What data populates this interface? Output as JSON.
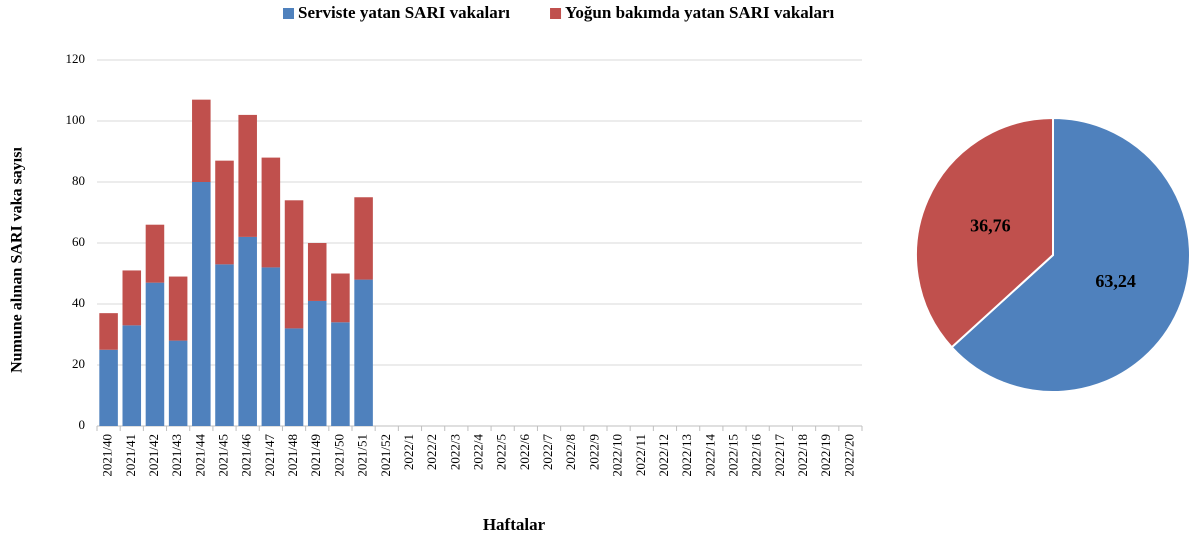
{
  "chart_data": [
    {
      "type": "bar",
      "stacked": true,
      "x_label": "Haftalar",
      "y_label": "Numune alınan SARI vaka sayısı",
      "categories": [
        "2021/40",
        "2021/41",
        "2021/42",
        "2021/43",
        "2021/44",
        "2021/45",
        "2021/46",
        "2021/47",
        "2021/48",
        "2021/49",
        "2021/50",
        "2021/51",
        "2021/52",
        "2022/1",
        "2022/2",
        "2022/3",
        "2022/4",
        "2022/5",
        "2022/6",
        "2022/7",
        "2022/8",
        "2022/9",
        "2022/10",
        "2022/11",
        "2022/12",
        "2022/13",
        "2022/14",
        "2022/15",
        "2022/16",
        "2022/17",
        "2022/18",
        "2022/19",
        "2022/20"
      ],
      "series": [
        {
          "name": "Serviste yatan SARI vakaları",
          "color": "#4f81bd",
          "values": [
            25,
            33,
            47,
            28,
            80,
            53,
            62,
            52,
            32,
            41,
            34,
            48,
            null,
            null,
            null,
            null,
            null,
            null,
            null,
            null,
            null,
            null,
            null,
            null,
            null,
            null,
            null,
            null,
            null,
            null,
            null,
            null,
            null
          ]
        },
        {
          "name": "Yoğun bakımda yatan SARI vakaları",
          "color": "#c0504d",
          "values": [
            12,
            18,
            19,
            21,
            27,
            34,
            40,
            36,
            42,
            19,
            16,
            27,
            null,
            null,
            null,
            null,
            null,
            null,
            null,
            null,
            null,
            null,
            null,
            null,
            null,
            null,
            null,
            null,
            null,
            null,
            null,
            null,
            null
          ]
        }
      ],
      "ylim": [
        0,
        120
      ],
      "yticks": [
        0,
        20,
        40,
        60,
        80,
        100,
        120
      ],
      "grid": true,
      "legend": "top"
    },
    {
      "type": "pie",
      "values": [
        63.24,
        36.76
      ],
      "value_labels": [
        "63,24",
        "36,76"
      ],
      "colors": [
        "#4f81bd",
        "#c0504d"
      ]
    }
  ]
}
